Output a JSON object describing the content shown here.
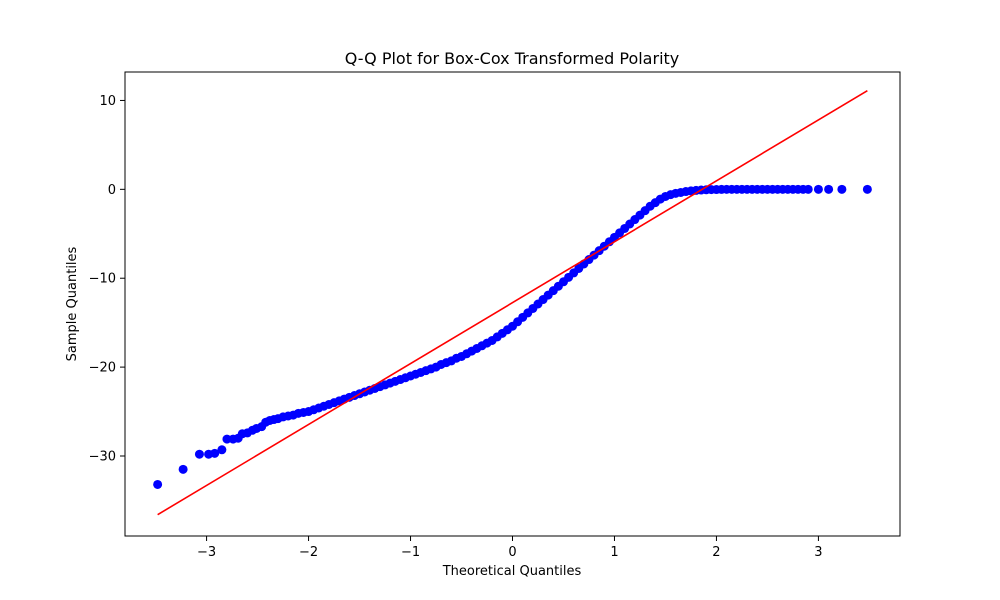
{
  "chart_data": {
    "type": "scatter",
    "title": "Q-Q Plot for Box-Cox Transformed Polarity",
    "xlabel": "Theoretical Quantiles",
    "ylabel": "Sample Quantiles",
    "xlim": [
      -3.8,
      3.8
    ],
    "ylim": [
      -39,
      13.2
    ],
    "xticks": [
      -3,
      -2,
      -1,
      0,
      1,
      2,
      3
    ],
    "xtick_labels": [
      "−3",
      "−2",
      "−1",
      "0",
      "1",
      "2",
      "3"
    ],
    "yticks": [
      -30,
      -20,
      -10,
      0,
      10
    ],
    "ytick_labels": [
      "−30",
      "−20",
      "−10",
      "0",
      "10"
    ],
    "grid": false,
    "series": [
      {
        "kind": "points",
        "color": "#0000ff",
        "points": [
          [
            -3.48,
            -33.2
          ],
          [
            -3.23,
            -31.5
          ],
          [
            -3.07,
            -29.8
          ],
          [
            -2.98,
            -29.8
          ],
          [
            -2.92,
            -29.7
          ],
          [
            -2.85,
            -29.3
          ],
          [
            -2.8,
            -28.1
          ],
          [
            -2.74,
            -28.1
          ],
          [
            -2.69,
            -28.0
          ],
          [
            -2.65,
            -27.5
          ],
          [
            -2.6,
            -27.4
          ],
          [
            -2.55,
            -27.1
          ],
          [
            -2.51,
            -26.9
          ],
          [
            -2.46,
            -26.7
          ],
          [
            -2.42,
            -26.2
          ],
          [
            -2.38,
            -26.0
          ],
          [
            -2.34,
            -25.9
          ],
          [
            -2.3,
            -25.8
          ],
          [
            -2.25,
            -25.6
          ],
          [
            -2.2,
            -25.5
          ],
          [
            -2.15,
            -25.4
          ],
          [
            -2.1,
            -25.2
          ],
          [
            -2.05,
            -25.1
          ],
          [
            -2.0,
            -25.0
          ],
          [
            -1.95,
            -24.8
          ],
          [
            -1.9,
            -24.6
          ],
          [
            -1.85,
            -24.4
          ],
          [
            -1.8,
            -24.2
          ],
          [
            -1.75,
            -24.0
          ],
          [
            -1.7,
            -23.8
          ],
          [
            -1.65,
            -23.6
          ],
          [
            -1.6,
            -23.4
          ],
          [
            -1.55,
            -23.2
          ],
          [
            -1.5,
            -23.0
          ],
          [
            -1.45,
            -22.8
          ],
          [
            -1.4,
            -22.6
          ],
          [
            -1.35,
            -22.4
          ],
          [
            -1.3,
            -22.2
          ],
          [
            -1.25,
            -22.0
          ],
          [
            -1.2,
            -21.8
          ],
          [
            -1.15,
            -21.6
          ],
          [
            -1.1,
            -21.4
          ],
          [
            -1.05,
            -21.2
          ],
          [
            -1.0,
            -21.0
          ],
          [
            -0.95,
            -20.8
          ],
          [
            -0.9,
            -20.6
          ],
          [
            -0.85,
            -20.4
          ],
          [
            -0.8,
            -20.2
          ],
          [
            -0.75,
            -20.0
          ],
          [
            -0.7,
            -19.7
          ],
          [
            -0.65,
            -19.5
          ],
          [
            -0.6,
            -19.3
          ],
          [
            -0.55,
            -19.0
          ],
          [
            -0.5,
            -18.8
          ],
          [
            -0.45,
            -18.5
          ],
          [
            -0.4,
            -18.2
          ],
          [
            -0.35,
            -17.9
          ],
          [
            -0.3,
            -17.6
          ],
          [
            -0.25,
            -17.3
          ],
          [
            -0.2,
            -17.0
          ],
          [
            -0.15,
            -16.6
          ],
          [
            -0.1,
            -16.2
          ],
          [
            -0.05,
            -15.8
          ],
          [
            0.0,
            -15.4
          ],
          [
            0.05,
            -14.9
          ],
          [
            0.1,
            -14.4
          ],
          [
            0.15,
            -13.9
          ],
          [
            0.2,
            -13.4
          ],
          [
            0.25,
            -12.9
          ],
          [
            0.3,
            -12.4
          ],
          [
            0.35,
            -11.9
          ],
          [
            0.4,
            -11.4
          ],
          [
            0.45,
            -10.9
          ],
          [
            0.5,
            -10.4
          ],
          [
            0.55,
            -9.9
          ],
          [
            0.6,
            -9.4
          ],
          [
            0.65,
            -8.9
          ],
          [
            0.7,
            -8.4
          ],
          [
            0.75,
            -7.9
          ],
          [
            0.8,
            -7.4
          ],
          [
            0.85,
            -6.9
          ],
          [
            0.9,
            -6.4
          ],
          [
            0.95,
            -5.9
          ],
          [
            1.0,
            -5.4
          ],
          [
            1.05,
            -4.9
          ],
          [
            1.1,
            -4.4
          ],
          [
            1.15,
            -3.9
          ],
          [
            1.2,
            -3.4
          ],
          [
            1.25,
            -2.9
          ],
          [
            1.3,
            -2.4
          ],
          [
            1.35,
            -1.9
          ],
          [
            1.4,
            -1.5
          ],
          [
            1.45,
            -1.1
          ],
          [
            1.5,
            -0.8
          ],
          [
            1.55,
            -0.6
          ],
          [
            1.6,
            -0.45
          ],
          [
            1.65,
            -0.35
          ],
          [
            1.7,
            -0.25
          ],
          [
            1.75,
            -0.18
          ],
          [
            1.8,
            -0.12
          ],
          [
            1.85,
            -0.08
          ],
          [
            1.9,
            -0.05
          ],
          [
            1.95,
            -0.03
          ],
          [
            2.0,
            -0.02
          ],
          [
            2.05,
            -0.01
          ],
          [
            2.1,
            0.0
          ],
          [
            2.15,
            0.0
          ],
          [
            2.2,
            0.0
          ],
          [
            2.25,
            0.0
          ],
          [
            2.3,
            0.0
          ],
          [
            2.35,
            0.0
          ],
          [
            2.4,
            0.0
          ],
          [
            2.45,
            0.0
          ],
          [
            2.5,
            0.0
          ],
          [
            2.55,
            0.0
          ],
          [
            2.6,
            0.0
          ],
          [
            2.65,
            0.0
          ],
          [
            2.7,
            0.0
          ],
          [
            2.75,
            0.0
          ],
          [
            2.8,
            0.0
          ],
          [
            2.85,
            0.0
          ],
          [
            2.9,
            0.0
          ],
          [
            3.0,
            0.0
          ],
          [
            3.1,
            0.0
          ],
          [
            3.23,
            0.0
          ],
          [
            3.48,
            0.0
          ]
        ]
      },
      {
        "kind": "line",
        "color": "#ff0000",
        "points": [
          [
            -3.48,
            -36.6
          ],
          [
            3.48,
            11.1
          ]
        ]
      }
    ]
  }
}
